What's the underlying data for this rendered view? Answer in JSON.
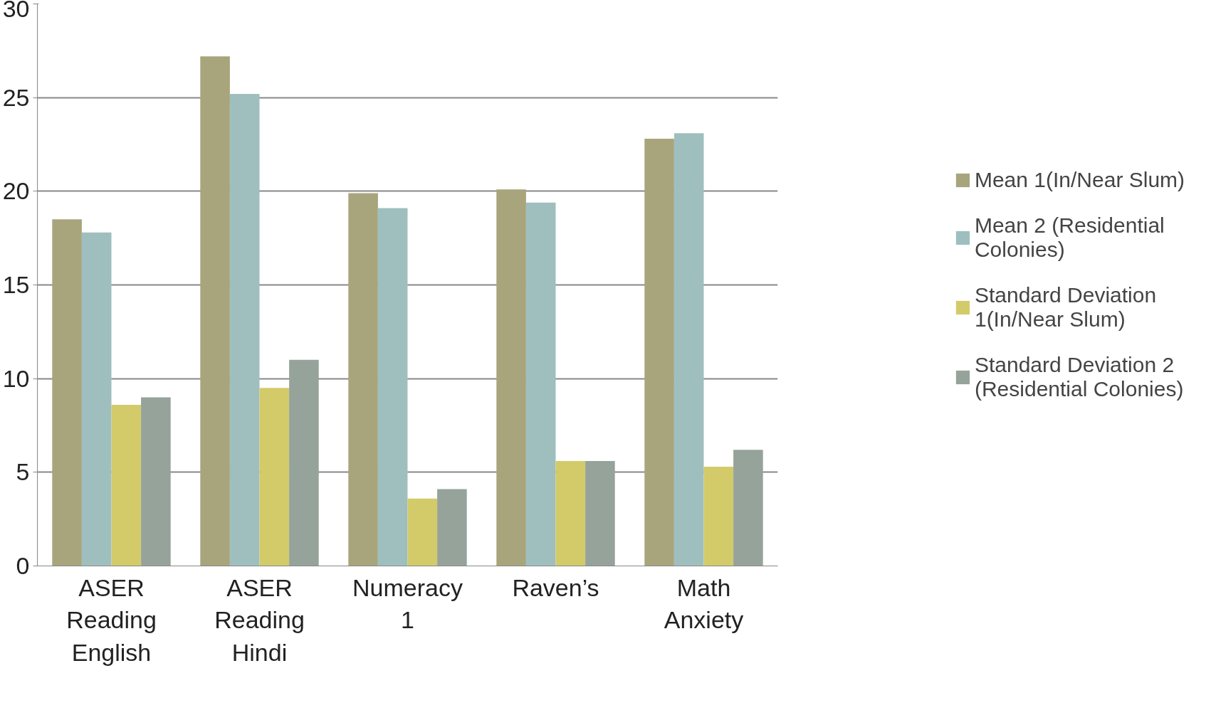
{
  "chart_data": {
    "type": "bar",
    "categories": [
      "ASER Reading English",
      "ASER Reading Hindi",
      "Numeracy 1",
      "Raven’s",
      "Math Anxiety"
    ],
    "series": [
      {
        "name": "Mean 1(In/Near Slum)",
        "color": "#a8a57c",
        "values": [
          18.5,
          27.2,
          19.9,
          20.1,
          22.8
        ]
      },
      {
        "name": "Mean 2 (Residential Colonies)",
        "color": "#9fbfbf",
        "values": [
          17.8,
          25.2,
          19.1,
          19.4,
          23.1
        ]
      },
      {
        "name": "Standard Deviation 1(In/Near Slum)",
        "color": "#d3cb6a",
        "values": [
          8.6,
          9.5,
          3.6,
          5.6,
          5.3
        ]
      },
      {
        "name": "Standard Deviation 2 (Residential Colonies)",
        "color": "#95a39b",
        "values": [
          9.0,
          11.0,
          4.1,
          5.6,
          6.2
        ]
      }
    ],
    "ylim": [
      0,
      30
    ],
    "yticks": [
      0,
      5,
      10,
      15,
      20,
      25,
      30
    ],
    "grid": "y",
    "legend": "right"
  }
}
